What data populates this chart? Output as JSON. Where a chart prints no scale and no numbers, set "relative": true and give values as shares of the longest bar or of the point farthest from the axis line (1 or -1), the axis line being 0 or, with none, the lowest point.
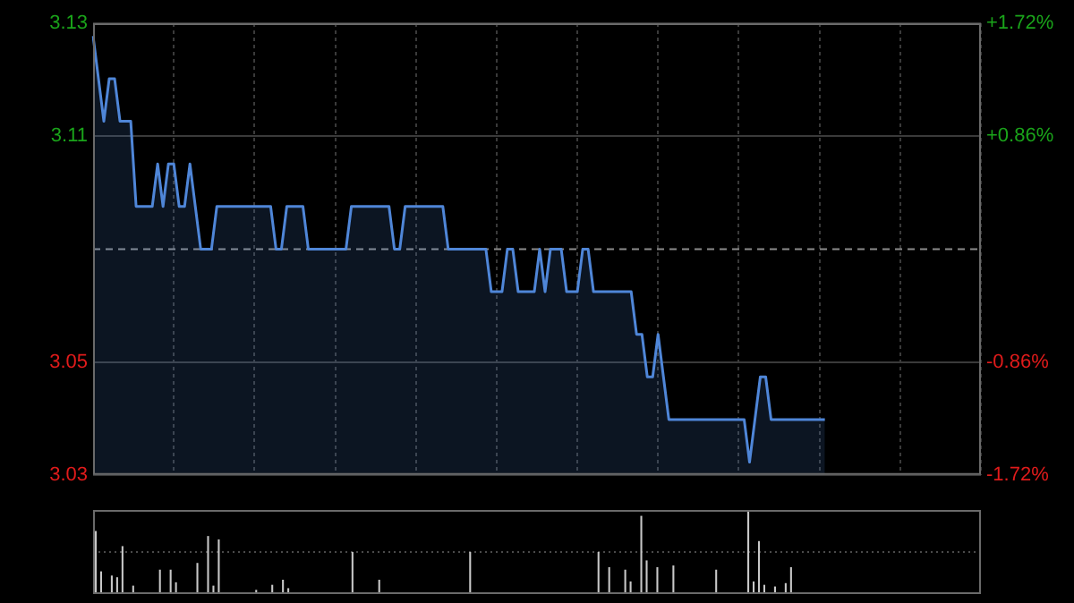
{
  "chart_data": [
    {
      "type": "area",
      "categories": [
        null,
        null,
        null,
        null,
        null,
        null,
        null,
        null,
        null,
        null,
        null,
        null,
        null,
        null,
        null,
        null,
        null,
        null,
        null,
        null,
        null,
        null,
        null,
        null,
        null,
        null,
        null,
        null,
        null,
        null,
        null,
        null,
        null,
        null,
        null,
        null,
        null,
        null,
        null,
        null,
        null,
        null,
        null,
        null,
        null,
        null,
        null,
        null,
        null,
        null,
        null,
        null,
        null,
        null,
        null,
        null,
        null,
        null,
        null,
        null,
        null,
        null,
        null,
        null,
        null,
        null,
        null,
        null,
        null,
        null,
        null,
        null,
        null,
        null,
        null,
        null,
        null,
        null,
        null,
        null,
        null,
        null,
        null,
        null,
        null,
        null,
        null,
        null,
        null,
        null,
        null,
        null,
        null,
        null,
        null,
        null,
        null,
        null,
        null,
        null,
        null,
        null,
        null,
        null,
        null,
        null,
        null,
        null,
        null,
        null,
        null,
        null,
        null,
        null,
        null,
        null,
        null,
        null,
        null,
        null,
        null,
        null,
        null,
        null,
        null,
        null,
        null,
        null,
        null,
        null,
        null,
        null,
        null,
        null,
        null,
        null,
        null,
        null,
        null,
        null,
        null,
        null,
        null,
        null,
        null,
        null,
        null,
        null,
        null,
        null,
        null,
        null,
        null,
        null,
        null,
        null,
        null,
        null,
        null,
        null,
        null,
        null,
        null,
        null,
        null,
        null
      ],
      "series": [
        {
          "color": "#4f86d8",
          "values": [
            3.13,
            3.12,
            3.11,
            3.12,
            3.12,
            3.11,
            3.11,
            3.11,
            3.09,
            3.09,
            3.09,
            3.09,
            3.1,
            3.09,
            3.1,
            3.1,
            3.09,
            3.09,
            3.1,
            3.09,
            3.08,
            3.08,
            3.08,
            3.09,
            3.09,
            3.09,
            3.09,
            3.09,
            3.09,
            3.09,
            3.09,
            3.09,
            3.09,
            3.09,
            3.08,
            3.08,
            3.09,
            3.09,
            3.09,
            3.09,
            3.08,
            3.08,
            3.08,
            3.08,
            3.08,
            3.08,
            3.08,
            3.08,
            3.09,
            3.09,
            3.09,
            3.09,
            3.09,
            3.09,
            3.09,
            3.09,
            3.08,
            3.08,
            3.09,
            3.09,
            3.09,
            3.09,
            3.09,
            3.09,
            3.09,
            3.09,
            3.08,
            3.08,
            3.08,
            3.08,
            3.08,
            3.08,
            3.08,
            3.08,
            3.07,
            3.07,
            3.07,
            3.08,
            3.08,
            3.07,
            3.07,
            3.07,
            3.07,
            3.08,
            3.07,
            3.08,
            3.08,
            3.08,
            3.07,
            3.07,
            3.07,
            3.08,
            3.08,
            3.07,
            3.07,
            3.07,
            3.07,
            3.07,
            3.07,
            3.07,
            3.07,
            3.06,
            3.06,
            3.05,
            3.05,
            3.06,
            3.05,
            3.04,
            3.04,
            3.04,
            3.04,
            3.04,
            3.04,
            3.04,
            3.04,
            3.04,
            3.04,
            3.04,
            3.04,
            3.04,
            3.04,
            3.04,
            3.03,
            3.04,
            3.05,
            3.05,
            3.04,
            3.04,
            3.04,
            3.04,
            3.04,
            3.04,
            3.04,
            3.04,
            3.04,
            3.04,
            3.04,
            null,
            null,
            null,
            null,
            null,
            null,
            null,
            null,
            null,
            null,
            null,
            null,
            null,
            null,
            null,
            null,
            null,
            null,
            null,
            null,
            null,
            null,
            null,
            null,
            null,
            null,
            null,
            null,
            null
          ]
        }
      ],
      "ylim": [
        3.027,
        3.133
      ],
      "yticks": [
        {
          "value": 3.133,
          "label": "3.13"
        },
        {
          "value": 3.1065,
          "label": "3.11"
        },
        {
          "value": 3.0535,
          "label": "3.05"
        },
        {
          "value": 3.027,
          "label": "3.03"
        }
      ],
      "y2lim": [
        -1.72,
        1.72
      ],
      "y2ticks": [
        {
          "value": 1.72,
          "label": "+1.72%"
        },
        {
          "value": 0.86,
          "label": "+0.86%"
        },
        {
          "value": -0.86,
          "label": "-0.86%"
        },
        {
          "value": -1.72,
          "label": "-1.72%"
        }
      ],
      "ref_lines": [
        {
          "axis": "y",
          "value": 3.08,
          "color": "#8c8c8c",
          "line_style": "dashed"
        }
      ],
      "tick_labels": "y",
      "grid": true,
      "legend": false
    },
    {
      "type": "bar",
      "relative": true,
      "categories": [
        null,
        null,
        null,
        null,
        null,
        null,
        null,
        null,
        null,
        null,
        null,
        null,
        null,
        null,
        null,
        null,
        null,
        null,
        null,
        null,
        null,
        null,
        null,
        null,
        null,
        null,
        null,
        null,
        null,
        null,
        null,
        null,
        null,
        null,
        null,
        null,
        null,
        null,
        null,
        null,
        null,
        null,
        null,
        null,
        null,
        null,
        null,
        null,
        null,
        null,
        null,
        null,
        null,
        null,
        null,
        null,
        null,
        null,
        null,
        null,
        null,
        null,
        null,
        null,
        null,
        null,
        null,
        null,
        null,
        null,
        null,
        null,
        null,
        null,
        null,
        null,
        null,
        null,
        null,
        null,
        null,
        null,
        null,
        null,
        null,
        null,
        null,
        null,
        null,
        null,
        null,
        null,
        null,
        null,
        null,
        null,
        null,
        null,
        null,
        null,
        null,
        null,
        null,
        null,
        null,
        null,
        null,
        null,
        null,
        null,
        null,
        null,
        null,
        null,
        null,
        null,
        null,
        null,
        null,
        null,
        null,
        null,
        null,
        null,
        null,
        null,
        null,
        null,
        null,
        null,
        null,
        null,
        null,
        null,
        null,
        null,
        null,
        null,
        null,
        null,
        null,
        null,
        null,
        null,
        null,
        null,
        null,
        null,
        null,
        null,
        null,
        null,
        null,
        null,
        null,
        null,
        null,
        null,
        null,
        null,
        null,
        null,
        null,
        null,
        null,
        null
      ],
      "series": [
        {
          "color": "#c8c8c8",
          "values": [
            0.75,
            0.27,
            0.02,
            0.22,
            0.2,
            0.57,
            0.02,
            0.1,
            0.02,
            0.02,
            0.02,
            0.02,
            0.29,
            0.02,
            0.29,
            0.14,
            0.02,
            0.02,
            0.02,
            0.37,
            0.02,
            0.69,
            0.1,
            0.65,
            0.02,
            0.02,
            0.02,
            0.02,
            0.02,
            0.02,
            0.05,
            0.02,
            0.02,
            0.11,
            0.02,
            0.17,
            0.07,
            0.02,
            0.02,
            0.02,
            0.02,
            0.02,
            0.02,
            0.02,
            0.02,
            0.02,
            0.02,
            0.02,
            0.5,
            0.02,
            0.02,
            0.02,
            0.02,
            0.17,
            0.02,
            0.02,
            0.02,
            0.02,
            0.02,
            0.02,
            0.02,
            0.02,
            0.02,
            0.02,
            0.02,
            0.02,
            0.02,
            0.02,
            0.02,
            0.02,
            0.5,
            0.02,
            0.02,
            0.02,
            0.02,
            0.02,
            0.02,
            0.02,
            0.02,
            0.02,
            0.02,
            0.02,
            0.02,
            0.02,
            0.02,
            0.02,
            0.02,
            0.02,
            0.02,
            0.02,
            0.02,
            0.02,
            0.02,
            0.02,
            0.5,
            0.02,
            0.32,
            0.02,
            0.02,
            0.29,
            0.15,
            0.02,
            0.93,
            0.4,
            0.02,
            0.32,
            0.02,
            0.02,
            0.34,
            0.02,
            0.02,
            0.02,
            0.02,
            0.02,
            0.02,
            0.02,
            0.29,
            0.02,
            0.02,
            0.02,
            0.02,
            0.02,
            1,
            0.15,
            0.63,
            0.11,
            0.02,
            0.09,
            0.02,
            0.13,
            0.32,
            0.02,
            0.02,
            0.02,
            0.02,
            0.02,
            0.02,
            null,
            null,
            null,
            null,
            null,
            null,
            null,
            null,
            null,
            null,
            null,
            null,
            null,
            null,
            null,
            null,
            null,
            null,
            null,
            null,
            null,
            null,
            null,
            null,
            null,
            null,
            null,
            null,
            null
          ]
        }
      ],
      "ref_lines": [
        {
          "axis": "y",
          "value": 0.5,
          "color": "#4a4a4a",
          "line_style": "dotted"
        }
      ],
      "tick_labels": false,
      "legend": false
    }
  ]
}
